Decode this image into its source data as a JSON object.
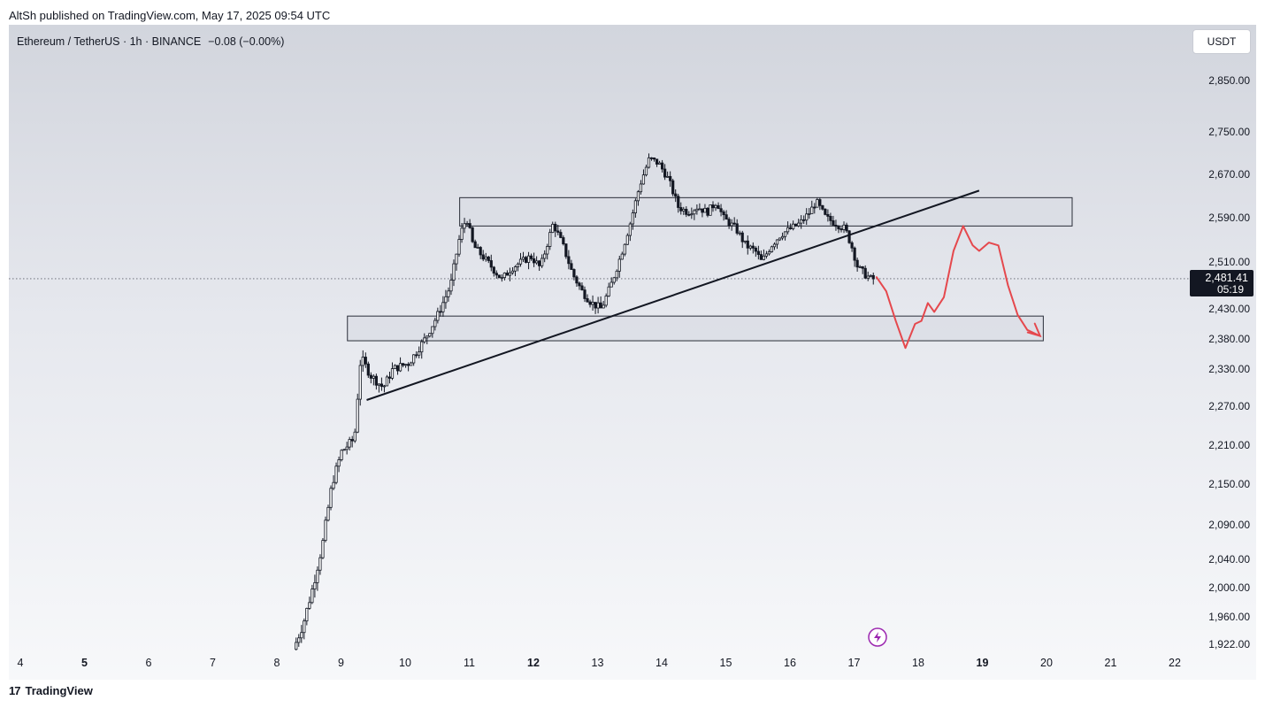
{
  "publish_bar": "AltSh published on TradingView.com, May 17, 2025 09:54 UTC",
  "legend": {
    "symbol": "Ethereum / TetherUS · 1h · BINANCE",
    "change": "−0.08 (−0.00%)"
  },
  "currency_button": "USDT",
  "brand": {
    "logo": "17",
    "name": "TradingView"
  },
  "colors": {
    "candle": "#131722",
    "trendline": "#131722",
    "projection": "#e5484d",
    "zone_fill": "#d9dce4",
    "zone_stroke": "#2a2e39",
    "price_tag_bg": "#131722",
    "lightning": "#9c27b0"
  },
  "lightning_icon": "lightning-icon",
  "chart_data": {
    "type": "candlestick",
    "timeframe": "1h",
    "y_ticks": [
      "2,850.00",
      "2,750.00",
      "2,670.00",
      "2,590.00",
      "2,510.00",
      "2,430.00",
      "2,380.00",
      "2,330.00",
      "2,270.00",
      "2,210.00",
      "2,150.00",
      "2,090.00",
      "2,040.00",
      "2,000.00",
      "1,960.00",
      "1,922.00"
    ],
    "x_ticks": [
      {
        "label": "4",
        "bold": false
      },
      {
        "label": "5",
        "bold": true
      },
      {
        "label": "6",
        "bold": false
      },
      {
        "label": "7",
        "bold": false
      },
      {
        "label": "8",
        "bold": false
      },
      {
        "label": "9",
        "bold": false
      },
      {
        "label": "10",
        "bold": false
      },
      {
        "label": "11",
        "bold": false
      },
      {
        "label": "12",
        "bold": true
      },
      {
        "label": "13",
        "bold": false
      },
      {
        "label": "14",
        "bold": false
      },
      {
        "label": "15",
        "bold": false
      },
      {
        "label": "16",
        "bold": false
      },
      {
        "label": "17",
        "bold": false
      },
      {
        "label": "18",
        "bold": false
      },
      {
        "label": "19",
        "bold": true
      },
      {
        "label": "20",
        "bold": false
      },
      {
        "label": "21",
        "bold": false
      },
      {
        "label": "22",
        "bold": false
      }
    ],
    "last_price": {
      "value": "2,481.41",
      "countdown": "05:19",
      "price": 2481.41
    },
    "price_path": [
      [
        8.3,
        1915
      ],
      [
        8.45,
        1950
      ],
      [
        8.6,
        2000
      ],
      [
        8.75,
        2060
      ],
      [
        8.9,
        2150
      ],
      [
        9.05,
        2200
      ],
      [
        9.25,
        2220
      ],
      [
        9.35,
        2350
      ],
      [
        9.5,
        2320
      ],
      [
        9.7,
        2300
      ],
      [
        9.85,
        2330
      ],
      [
        10.1,
        2340
      ],
      [
        10.35,
        2380
      ],
      [
        10.55,
        2420
      ],
      [
        10.75,
        2470
      ],
      [
        10.9,
        2560
      ],
      [
        11.0,
        2590
      ],
      [
        11.1,
        2540
      ],
      [
        11.25,
        2520
      ],
      [
        11.4,
        2500
      ],
      [
        11.55,
        2480
      ],
      [
        11.7,
        2500
      ],
      [
        11.85,
        2510
      ],
      [
        12.0,
        2520
      ],
      [
        12.15,
        2500
      ],
      [
        12.35,
        2580
      ],
      [
        12.5,
        2540
      ],
      [
        12.65,
        2490
      ],
      [
        12.8,
        2460
      ],
      [
        12.95,
        2440
      ],
      [
        13.1,
        2430
      ],
      [
        13.25,
        2470
      ],
      [
        13.4,
        2520
      ],
      [
        13.55,
        2580
      ],
      [
        13.7,
        2650
      ],
      [
        13.85,
        2700
      ],
      [
        14.0,
        2690
      ],
      [
        14.15,
        2660
      ],
      [
        14.3,
        2610
      ],
      [
        14.45,
        2600
      ],
      [
        14.6,
        2610
      ],
      [
        14.75,
        2600
      ],
      [
        14.9,
        2620
      ],
      [
        15.0,
        2590
      ],
      [
        15.1,
        2580
      ],
      [
        15.2,
        2570
      ],
      [
        15.35,
        2540
      ],
      [
        15.5,
        2530
      ],
      [
        15.6,
        2510
      ],
      [
        15.75,
        2540
      ],
      [
        15.9,
        2560
      ],
      [
        16.05,
        2570
      ],
      [
        16.2,
        2580
      ],
      [
        16.35,
        2600
      ],
      [
        16.45,
        2620
      ],
      [
        16.6,
        2590
      ],
      [
        16.75,
        2580
      ],
      [
        16.9,
        2570
      ],
      [
        17.0,
        2540
      ],
      [
        17.1,
        2500
      ],
      [
        17.2,
        2490
      ],
      [
        17.3,
        2481
      ]
    ],
    "zones": [
      {
        "from": 10.85,
        "to": 20.4,
        "low": 2575,
        "high": 2627
      },
      {
        "from": 9.1,
        "to": 19.95,
        "low": 2377,
        "high": 2418
      }
    ],
    "trendline": {
      "start": [
        9.4,
        2280
      ],
      "end": [
        18.95,
        2640
      ]
    },
    "projection": [
      [
        17.35,
        2484
      ],
      [
        17.5,
        2460
      ],
      [
        17.65,
        2410
      ],
      [
        17.8,
        2365
      ],
      [
        17.95,
        2405
      ],
      [
        18.05,
        2410
      ],
      [
        18.15,
        2440
      ],
      [
        18.25,
        2425
      ],
      [
        18.4,
        2450
      ],
      [
        18.55,
        2530
      ],
      [
        18.7,
        2575
      ],
      [
        18.85,
        2540
      ],
      [
        18.95,
        2530
      ],
      [
        19.1,
        2545
      ],
      [
        19.25,
        2540
      ],
      [
        19.4,
        2470
      ],
      [
        19.55,
        2420
      ],
      [
        19.7,
        2395
      ],
      [
        19.9,
        2385
      ]
    ],
    "grid": false
  }
}
